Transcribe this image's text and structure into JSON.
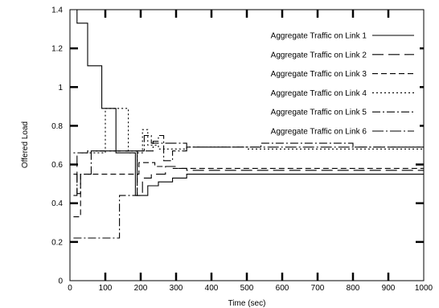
{
  "chart_data": {
    "type": "line",
    "xlabel": "Time (sec)",
    "ylabel": "Offered Load",
    "xlim": [
      0,
      1000
    ],
    "ylim": [
      0,
      1.4
    ],
    "x_ticks": [
      0,
      100,
      200,
      300,
      400,
      500,
      600,
      700,
      800,
      900,
      1000
    ],
    "y_ticks": [
      0,
      0.2,
      0.4,
      0.6,
      0.8,
      1,
      1.2,
      1.4
    ],
    "x_tick_labels": [
      "0",
      "100",
      "200",
      "300",
      "400",
      "500",
      "600",
      "700",
      "800",
      "900",
      "1000"
    ],
    "y_tick_labels": [
      "0",
      "0.2",
      "0.4",
      "0.6",
      "0.8",
      "1",
      "1.2",
      "1.4"
    ],
    "grid": false,
    "legend_position": "top-right",
    "series": [
      {
        "name": "Aggregate Traffic on Link 1",
        "dash": "",
        "points": [
          [
            10,
            1.4
          ],
          [
            20,
            1.4
          ],
          [
            20,
            1.33
          ],
          [
            50,
            1.33
          ],
          [
            50,
            1.11
          ],
          [
            90,
            1.11
          ],
          [
            90,
            0.89
          ],
          [
            130,
            0.89
          ],
          [
            130,
            0.66
          ],
          [
            185,
            0.66
          ],
          [
            185,
            0.44
          ],
          [
            220,
            0.44
          ],
          [
            220,
            0.49
          ],
          [
            250,
            0.49
          ],
          [
            250,
            0.51
          ],
          [
            290,
            0.51
          ],
          [
            290,
            0.53
          ],
          [
            330,
            0.53
          ],
          [
            330,
            0.55
          ],
          [
            1000,
            0.55
          ]
        ]
      },
      {
        "name": "Aggregate Traffic on Link 2",
        "dash": "14,6",
        "points": [
          [
            10,
            0.44
          ],
          [
            20,
            0.44
          ],
          [
            20,
            0.66
          ],
          [
            50,
            0.66
          ],
          [
            50,
            0.67
          ],
          [
            190,
            0.67
          ],
          [
            190,
            0.44
          ],
          [
            205,
            0.44
          ],
          [
            205,
            0.53
          ],
          [
            230,
            0.53
          ],
          [
            230,
            0.55
          ],
          [
            270,
            0.55
          ],
          [
            270,
            0.59
          ],
          [
            300,
            0.59
          ],
          [
            300,
            0.58
          ],
          [
            330,
            0.58
          ],
          [
            330,
            0.57
          ],
          [
            1000,
            0.57
          ]
        ]
      },
      {
        "name": "Aggregate Traffic on Link 3",
        "dash": "7,4",
        "points": [
          [
            10,
            0.33
          ],
          [
            30,
            0.33
          ],
          [
            30,
            0.55
          ],
          [
            195,
            0.55
          ],
          [
            195,
            0.61
          ],
          [
            240,
            0.61
          ],
          [
            240,
            0.59
          ],
          [
            290,
            0.59
          ],
          [
            290,
            0.58
          ],
          [
            1000,
            0.58
          ]
        ]
      },
      {
        "name": "Aggregate Traffic on Link 4",
        "dash": "2,3",
        "points": [
          [
            10,
            0.66
          ],
          [
            100,
            0.66
          ],
          [
            100,
            0.89
          ],
          [
            165,
            0.89
          ],
          [
            165,
            0.66
          ],
          [
            205,
            0.66
          ],
          [
            205,
            0.78
          ],
          [
            220,
            0.78
          ],
          [
            220,
            0.7
          ],
          [
            250,
            0.7
          ],
          [
            250,
            0.68
          ],
          [
            330,
            0.68
          ],
          [
            330,
            0.69
          ],
          [
            500,
            0.69
          ],
          [
            500,
            0.68
          ],
          [
            1000,
            0.68
          ]
        ]
      },
      {
        "name": "Aggregate Traffic on Link 5",
        "dash": "10,3,2,3",
        "points": [
          [
            10,
            0.22
          ],
          [
            140,
            0.22
          ],
          [
            140,
            0.44
          ],
          [
            190,
            0.44
          ],
          [
            190,
            0.67
          ],
          [
            235,
            0.67
          ],
          [
            235,
            0.72
          ],
          [
            250,
            0.72
          ],
          [
            250,
            0.75
          ],
          [
            265,
            0.75
          ],
          [
            265,
            0.62
          ],
          [
            290,
            0.62
          ],
          [
            290,
            0.67
          ],
          [
            330,
            0.67
          ],
          [
            330,
            0.69
          ],
          [
            540,
            0.69
          ],
          [
            540,
            0.71
          ],
          [
            800,
            0.71
          ],
          [
            800,
            0.69
          ],
          [
            1000,
            0.69
          ]
        ]
      },
      {
        "name": "Aggregate Traffic on Link 6",
        "dash": "14,3,2,3",
        "points": [
          [
            10,
            0.55
          ],
          [
            20,
            0.55
          ],
          [
            20,
            0.45
          ],
          [
            30,
            0.45
          ],
          [
            30,
            0.55
          ],
          [
            60,
            0.55
          ],
          [
            60,
            0.67
          ],
          [
            210,
            0.67
          ],
          [
            210,
            0.75
          ],
          [
            230,
            0.75
          ],
          [
            230,
            0.71
          ],
          [
            330,
            0.71
          ],
          [
            330,
            0.69
          ],
          [
            1000,
            0.69
          ]
        ]
      }
    ]
  }
}
